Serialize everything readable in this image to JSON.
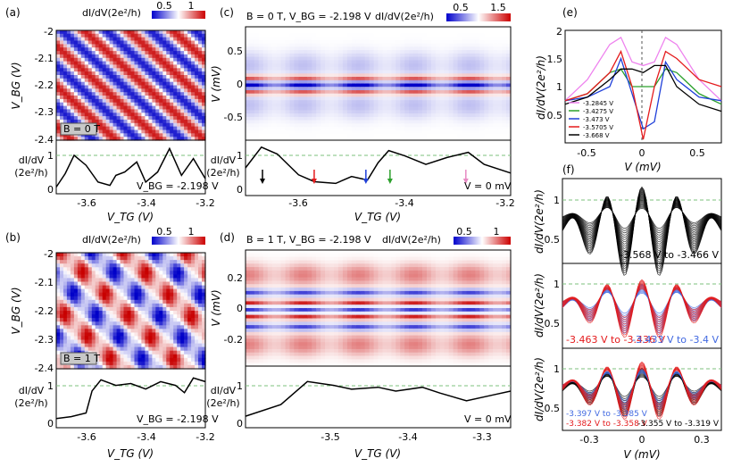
{
  "panels": {
    "a": {
      "label": "(a)",
      "colorbar": {
        "label": "dI/dV(2e²/h)",
        "ticks": [
          "0.5",
          "1"
        ]
      },
      "map": {
        "ylabel": "V_BG (V)",
        "yticks": [
          "-2",
          "-2.1",
          "-2.2",
          "-2.3",
          "-2.4"
        ],
        "field_label": "B = 0 T"
      },
      "trace": {
        "ylabel_top": "dI/dV",
        "ylabel_bot": "(2e²/h)",
        "yticks": [
          "1",
          "0"
        ],
        "annotation": "V_BG = -2.198 V",
        "xticks": [
          "-3.6",
          "-3.4",
          "-3.2"
        ],
        "xlabel": "V_TG (V)"
      }
    },
    "b": {
      "label": "(b)",
      "colorbar": {
        "label": "dI/dV(2e²/h)",
        "ticks": [
          "0.5",
          "1"
        ]
      },
      "map": {
        "ylabel": "V_BG (V)",
        "yticks": [
          "-2",
          "-2.1",
          "-2.2",
          "-2.3",
          "-2.4"
        ],
        "field_label": "B = 1 T"
      },
      "trace": {
        "ylabel_top": "dI/dV",
        "ylabel_bot": "(2e²/h)",
        "yticks": [
          "1",
          "0"
        ],
        "annotation": "V_BG = -2.198 V",
        "xticks": [
          "-3.6",
          "-3.4",
          "-3.2"
        ],
        "xlabel": "V_TG (V)"
      }
    },
    "c": {
      "label": "(c)",
      "title": "B = 0 T, V_BG = -2.198 V",
      "colorbar": {
        "label": "dI/dV(2e²/h)",
        "ticks": [
          "0.5",
          "1.5"
        ]
      },
      "map": {
        "ylabel": "V (mV)",
        "yticks": [
          "0.5",
          "0",
          "-0.5"
        ]
      },
      "trace": {
        "ylabel_top": "dI/dV",
        "ylabel_bot": "(2e²/h)",
        "yticks": [
          "1",
          "0"
        ],
        "annotation": "V = 0 mV",
        "xticks": [
          "-3.6",
          "-3.4",
          "-3.2"
        ],
        "xlabel": "V_TG (V)"
      }
    },
    "d": {
      "label": "(d)",
      "title": "B = 1 T, V_BG = -2.198 V",
      "colorbar": {
        "label": "dI/dV(2e²/h)",
        "ticks": [
          "0.5",
          "1"
        ]
      },
      "map": {
        "ylabel": "V (mV)",
        "yticks": [
          "0.2",
          "0",
          "-0.2"
        ]
      },
      "trace": {
        "ylabel_top": "dI/dV",
        "ylabel_bot": "(2e²/h)",
        "yticks": [
          "1",
          "0"
        ],
        "annotation": "V = 0 mV",
        "xticks": [
          "-3.5",
          "-3.4",
          "-3.3"
        ],
        "xlabel": "V_TG (V)"
      }
    },
    "e": {
      "label": "(e)",
      "ylabel": "dI/dV(2e²/h)",
      "xlabel": "V (mV)",
      "yticks": [
        "2",
        "1.5",
        "1",
        "0.5"
      ],
      "xticks": [
        "-0.5",
        "0",
        "0.5"
      ],
      "legend": [
        "-3.2845 V",
        "-3.4275 V",
        "-3.473 V",
        "-3.5705 V",
        "-3.668 V"
      ]
    },
    "f": {
      "label": "(f)",
      "ylabel": "dI/dV(2e²/h)",
      "xlabel": "V (mV)",
      "xticks": [
        "-0.3",
        "0",
        "0.3"
      ],
      "sub1": {
        "yticks": [
          "1",
          "0.5"
        ],
        "caption": "-3.568 V to -3.466 V"
      },
      "sub2": {
        "yticks": [
          "1",
          "0.5"
        ],
        "caption_red": "-3.463 V to -3.436 V",
        "caption_blue": "-3.433 V to -3.4 V"
      },
      "sub3": {
        "yticks": [
          "1",
          "0.5"
        ],
        "caption_blue": "-3.397 V to -3.385 V",
        "caption_red": "-3.382 V to -3.358 V",
        "caption_black": "-3.355 V to -3.319 V"
      }
    }
  },
  "chart_data": [
    {
      "type": "heatmap",
      "id": "a",
      "x_range": [
        -3.7,
        -3.2
      ],
      "y_range": [
        -2.4,
        -2.0
      ],
      "color_range": [
        0.5,
        1.0
      ],
      "xlabel": "V_TG (V)",
      "ylabel": "V_BG (V)",
      "note": "diagonal resonance stripes"
    },
    {
      "type": "line",
      "id": "a-trace",
      "x": [
        -3.7,
        -3.67,
        -3.64,
        -3.6,
        -3.56,
        -3.52,
        -3.5,
        -3.47,
        -3.43,
        -3.4,
        -3.36,
        -3.32,
        -3.28,
        -3.24,
        -3.2
      ],
      "y": [
        0.1,
        0.5,
        1.05,
        0.75,
        0.25,
        0.15,
        0.45,
        0.55,
        0.85,
        0.25,
        0.55,
        1.25,
        0.45,
        0.95,
        0.35
      ]
    },
    {
      "type": "heatmap",
      "id": "b",
      "x_range": [
        -3.7,
        -3.2
      ],
      "y_range": [
        -2.4,
        -2.0
      ],
      "color_range": [
        0.5,
        1.0
      ],
      "xlabel": "V_TG (V)",
      "ylabel": "V_BG (V)"
    },
    {
      "type": "line",
      "id": "b-trace",
      "x": [
        -3.7,
        -3.65,
        -3.6,
        -3.58,
        -3.55,
        -3.5,
        -3.45,
        -3.4,
        -3.35,
        -3.3,
        -3.27,
        -3.24,
        -3.2
      ],
      "y": [
        0.15,
        0.2,
        0.3,
        0.9,
        1.2,
        1.05,
        1.1,
        0.95,
        1.15,
        1.05,
        0.85,
        1.25,
        1.15
      ]
    },
    {
      "type": "heatmap",
      "id": "c",
      "x_range": [
        -3.7,
        -3.2
      ],
      "y_range": [
        -0.8,
        0.8
      ],
      "color_range": [
        0.5,
        1.5
      ],
      "xlabel": "V_TG (V)",
      "ylabel": "V (mV)"
    },
    {
      "type": "line",
      "id": "c-trace",
      "x": [
        -3.7,
        -3.67,
        -3.64,
        -3.6,
        -3.57,
        -3.53,
        -3.5,
        -3.47,
        -3.45,
        -3.43,
        -3.4,
        -3.36,
        -3.32,
        -3.28,
        -3.25,
        -3.2
      ],
      "y": [
        0.7,
        1.3,
        1.1,
        0.5,
        0.3,
        0.25,
        0.45,
        0.35,
        0.85,
        1.2,
        1.05,
        0.8,
        1.0,
        1.15,
        0.8,
        0.55
      ],
      "arrows": [
        {
          "x": -3.668,
          "color": "#000000"
        },
        {
          "x": -3.5705,
          "color": "#e41a1c"
        },
        {
          "x": -3.473,
          "color": "#1f3fd9"
        },
        {
          "x": -3.4275,
          "color": "#2ca02c"
        },
        {
          "x": -3.2845,
          "color": "#e78ac3"
        }
      ]
    },
    {
      "type": "heatmap",
      "id": "d",
      "x_range": [
        -3.57,
        -3.27
      ],
      "y_range": [
        -0.35,
        0.35
      ],
      "color_range": [
        0.5,
        1.0
      ],
      "xlabel": "V_TG (V)",
      "ylabel": "V (mV)"
    },
    {
      "type": "line",
      "id": "d-trace",
      "x": [
        -3.57,
        -3.53,
        -3.5,
        -3.47,
        -3.45,
        -3.42,
        -3.4,
        -3.37,
        -3.35,
        -3.32,
        -3.29,
        -3.27
      ],
      "y": [
        0.2,
        0.5,
        1.1,
        1.0,
        0.9,
        0.95,
        0.85,
        0.95,
        0.8,
        0.6,
        0.75,
        0.85
      ]
    },
    {
      "type": "line",
      "id": "e",
      "xlabel": "V (mV)",
      "ylabel": "dI/dV(2e²/h)",
      "xlim": [
        -0.7,
        0.7
      ],
      "ylim": [
        0.4,
        2.0
      ],
      "series": [
        {
          "name": "-3.2845 V",
          "color": "#ee82ee",
          "x": [
            -0.7,
            -0.5,
            -0.3,
            -0.2,
            -0.1,
            0,
            0.1,
            0.2,
            0.3,
            0.5,
            0.7
          ],
          "y": [
            1.0,
            1.3,
            1.8,
            1.9,
            1.55,
            1.5,
            1.55,
            1.9,
            1.8,
            1.3,
            1.0
          ]
        },
        {
          "name": "-3.4275 V",
          "color": "#2ca02c",
          "x": [
            -0.7,
            -0.5,
            -0.3,
            -0.2,
            -0.1,
            0,
            0.1,
            0.2,
            0.3,
            0.5,
            0.7
          ],
          "y": [
            1.0,
            1.1,
            1.4,
            1.45,
            1.2,
            1.2,
            1.2,
            1.45,
            1.4,
            1.1,
            0.95
          ]
        },
        {
          "name": "-3.473 V",
          "color": "#1f3fd9",
          "x": [
            -0.7,
            -0.5,
            -0.3,
            -0.2,
            -0.1,
            0,
            0.1,
            0.2,
            0.3,
            0.5,
            0.7
          ],
          "y": [
            1.0,
            1.05,
            1.2,
            1.6,
            1.1,
            0.6,
            0.7,
            1.55,
            1.3,
            1.05,
            1.0
          ]
        },
        {
          "name": "-3.5705 V",
          "color": "#e41a1c",
          "x": [
            -0.7,
            -0.5,
            -0.3,
            -0.2,
            -0.1,
            0,
            0.1,
            0.2,
            0.3,
            0.5,
            0.7
          ],
          "y": [
            1.0,
            1.1,
            1.4,
            1.7,
            1.2,
            0.45,
            1.2,
            1.7,
            1.6,
            1.3,
            1.2
          ]
        },
        {
          "name": "-3.668 V",
          "color": "#000000",
          "x": [
            -0.7,
            -0.5,
            -0.3,
            -0.2,
            -0.1,
            0,
            0.1,
            0.2,
            0.3,
            0.5,
            0.7
          ],
          "y": [
            0.95,
            1.05,
            1.3,
            1.45,
            1.45,
            1.4,
            1.5,
            1.5,
            1.2,
            0.95,
            0.85
          ]
        }
      ]
    },
    {
      "type": "line",
      "id": "f",
      "xlabel": "V (mV)",
      "ylabel": "dI/dV(2e²/h)",
      "xlim": [
        -0.45,
        0.45
      ],
      "ylim": [
        0.3,
        1.3
      ],
      "subplots": [
        {
          "groups": [
            {
              "name": "-3.568 V to -3.466 V",
              "color": "#000000"
            }
          ]
        },
        {
          "groups": [
            {
              "name": "-3.463 V to -3.436 V",
              "color": "#e41a1c"
            },
            {
              "name": "-3.433 V to -3.4 V",
              "color": "#4169e1"
            }
          ]
        },
        {
          "groups": [
            {
              "name": "-3.397 V to -3.385 V",
              "color": "#4169e1"
            },
            {
              "name": "-3.382 V to -3.358 V",
              "color": "#e41a1c"
            },
            {
              "name": "-3.355 V to -3.319 V",
              "color": "#000000"
            }
          ]
        }
      ]
    }
  ]
}
